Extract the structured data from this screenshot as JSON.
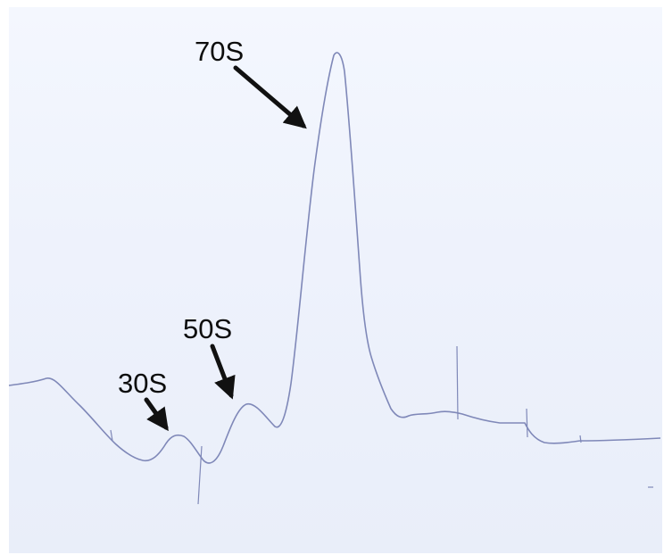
{
  "chart_data": {
    "type": "line",
    "title": "",
    "xlabel": "",
    "ylabel": "",
    "grid": false,
    "legend": "none",
    "colors": {
      "trace": "#7f88b8",
      "annotation": "#111111",
      "paper": "#eef2fc"
    },
    "annotations": [
      {
        "label": "30S"
      },
      {
        "label": "50S"
      },
      {
        "label": "70S"
      }
    ]
  }
}
